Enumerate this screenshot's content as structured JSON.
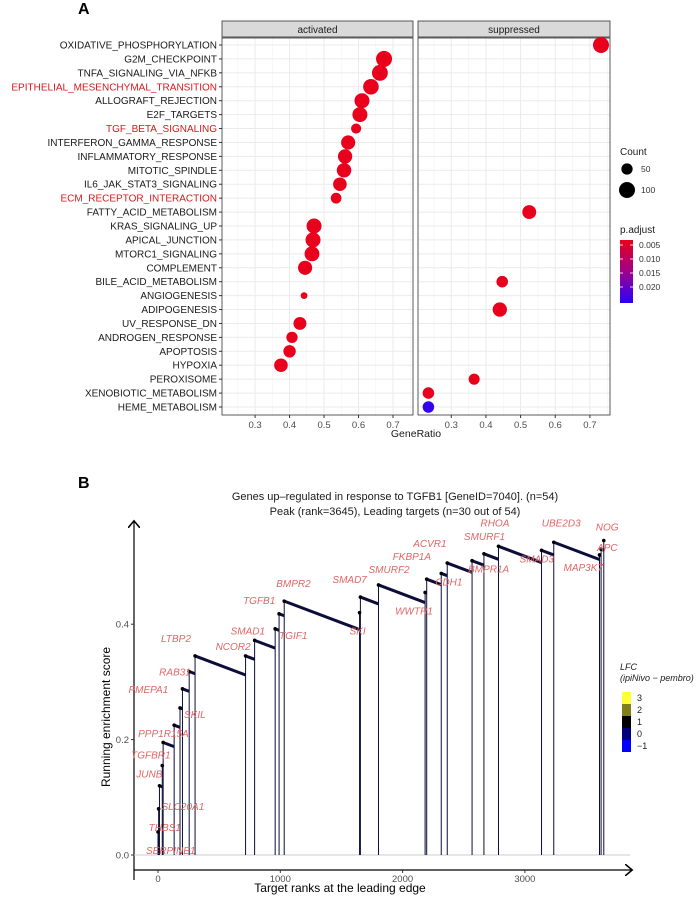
{
  "chart_data": [
    {
      "type": "scatter",
      "panel_label": "A",
      "facets": [
        "activated",
        "suppressed"
      ],
      "xlabel": "GeneRatio",
      "x_ticks": [
        "0.3",
        "0.4",
        "0.5",
        "0.6",
        "0.7"
      ],
      "xlim": [
        0.204,
        0.758
      ],
      "grid": true,
      "highlight_color": "#d7191c",
      "categories": [
        {
          "name": "OXIDATIVE_PHOSPHORYLATION",
          "highlight": false
        },
        {
          "name": "G2M_CHECKPOINT",
          "highlight": false
        },
        {
          "name": "TNFA_SIGNALING_VIA_NFKB",
          "highlight": false
        },
        {
          "name": "EPITHELIAL_MESENCHYMAL_TRANSITION",
          "highlight": true
        },
        {
          "name": "ALLOGRAFT_REJECTION",
          "highlight": false
        },
        {
          "name": "E2F_TARGETS",
          "highlight": false
        },
        {
          "name": "TGF_BETA_SIGNALING",
          "highlight": true
        },
        {
          "name": "INTERFERON_GAMMA_RESPONSE",
          "highlight": false
        },
        {
          "name": "INFLAMMATORY_RESPONSE",
          "highlight": false
        },
        {
          "name": "MITOTIC_SPINDLE",
          "highlight": false
        },
        {
          "name": "IL6_JAK_STAT3_SIGNALING",
          "highlight": false
        },
        {
          "name": "ECM_RECEPTOR_INTERACTION",
          "highlight": true
        },
        {
          "name": "FATTY_ACID_METABOLISM",
          "highlight": false
        },
        {
          "name": "KRAS_SIGNALING_UP",
          "highlight": false
        },
        {
          "name": "APICAL_JUNCTION",
          "highlight": false
        },
        {
          "name": "MTORC1_SIGNALING",
          "highlight": false
        },
        {
          "name": "COMPLEMENT",
          "highlight": false
        },
        {
          "name": "BILE_ACID_METABOLISM",
          "highlight": false
        },
        {
          "name": "ANGIOGENESIS",
          "highlight": false
        },
        {
          "name": "ADIPOGENESIS",
          "highlight": false
        },
        {
          "name": "UV_RESPONSE_DN",
          "highlight": false
        },
        {
          "name": "ANDROGEN_RESPONSE",
          "highlight": false
        },
        {
          "name": "APOPTOSIS",
          "highlight": false
        },
        {
          "name": "HYPOXIA",
          "highlight": false
        },
        {
          "name": "PEROXISOME",
          "highlight": false
        },
        {
          "name": "XENOBIOTIC_METABOLISM",
          "highlight": false
        },
        {
          "name": "HEME_METABOLISM",
          "highlight": false
        }
      ],
      "points": [
        {
          "term": "OXIDATIVE_PHOSPHORYLATION",
          "facet": "suppressed",
          "gene_ratio": 0.732,
          "count": 100,
          "p_adjust": 0.001
        },
        {
          "term": "G2M_CHECKPOINT",
          "facet": "activated",
          "gene_ratio": 0.674,
          "count": 100,
          "p_adjust": 0.001
        },
        {
          "term": "TNFA_SIGNALING_VIA_NFKB",
          "facet": "activated",
          "gene_ratio": 0.662,
          "count": 98,
          "p_adjust": 0.001
        },
        {
          "term": "EPITHELIAL_MESENCHYMAL_TRANSITION",
          "facet": "activated",
          "gene_ratio": 0.636,
          "count": 95,
          "p_adjust": 0.001
        },
        {
          "term": "ALLOGRAFT_REJECTION",
          "facet": "activated",
          "gene_ratio": 0.61,
          "count": 88,
          "p_adjust": 0.001
        },
        {
          "term": "E2F_TARGETS",
          "facet": "activated",
          "gene_ratio": 0.604,
          "count": 88,
          "p_adjust": 0.001
        },
        {
          "term": "TGF_BETA_SIGNALING",
          "facet": "activated",
          "gene_ratio": 0.593,
          "count": 40,
          "p_adjust": 0.001
        },
        {
          "term": "INTERFERON_GAMMA_RESPONSE",
          "facet": "activated",
          "gene_ratio": 0.57,
          "count": 78,
          "p_adjust": 0.001
        },
        {
          "term": "INFLAMMATORY_RESPONSE",
          "facet": "activated",
          "gene_ratio": 0.561,
          "count": 80,
          "p_adjust": 0.001
        },
        {
          "term": "MITOTIC_SPINDLE",
          "facet": "activated",
          "gene_ratio": 0.558,
          "count": 82,
          "p_adjust": 0.001
        },
        {
          "term": "IL6_JAK_STAT3_SIGNALING",
          "facet": "activated",
          "gene_ratio": 0.546,
          "count": 72,
          "p_adjust": 0.001
        },
        {
          "term": "ECM_RECEPTOR_INTERACTION",
          "facet": "activated",
          "gene_ratio": 0.535,
          "count": 45,
          "p_adjust": 0.001
        },
        {
          "term": "FATTY_ACID_METABOLISM",
          "facet": "suppressed",
          "gene_ratio": 0.525,
          "count": 75,
          "p_adjust": 0.001
        },
        {
          "term": "KRAS_SIGNALING_UP",
          "facet": "activated",
          "gene_ratio": 0.471,
          "count": 88,
          "p_adjust": 0.001
        },
        {
          "term": "APICAL_JUNCTION",
          "facet": "activated",
          "gene_ratio": 0.468,
          "count": 88,
          "p_adjust": 0.001
        },
        {
          "term": "MTORC1_SIGNALING",
          "facet": "activated",
          "gene_ratio": 0.465,
          "count": 86,
          "p_adjust": 0.001
        },
        {
          "term": "COMPLEMENT",
          "facet": "activated",
          "gene_ratio": 0.445,
          "count": 78,
          "p_adjust": 0.001
        },
        {
          "term": "BILE_ACID_METABOLISM",
          "facet": "suppressed",
          "gene_ratio": 0.447,
          "count": 52,
          "p_adjust": 0.001
        },
        {
          "term": "ANGIOGENESIS",
          "facet": "activated",
          "gene_ratio": 0.442,
          "count": 18,
          "p_adjust": 0.001
        },
        {
          "term": "ADIPOGENESIS",
          "facet": "suppressed",
          "gene_ratio": 0.44,
          "count": 80,
          "p_adjust": 0.001
        },
        {
          "term": "UV_RESPONSE_DN",
          "facet": "activated",
          "gene_ratio": 0.43,
          "count": 65,
          "p_adjust": 0.001
        },
        {
          "term": "ANDROGEN_RESPONSE",
          "facet": "activated",
          "gene_ratio": 0.407,
          "count": 50,
          "p_adjust": 0.001
        },
        {
          "term": "APOPTOSIS",
          "facet": "activated",
          "gene_ratio": 0.4,
          "count": 60,
          "p_adjust": 0.001
        },
        {
          "term": "HYPOXIA",
          "facet": "activated",
          "gene_ratio": 0.375,
          "count": 72,
          "p_adjust": 0.001
        },
        {
          "term": "PEROXISOME",
          "facet": "suppressed",
          "gene_ratio": 0.366,
          "count": 48,
          "p_adjust": 0.001
        },
        {
          "term": "XENOBIOTIC_METABOLISM",
          "facet": "suppressed",
          "gene_ratio": 0.234,
          "count": 52,
          "p_adjust": 0.002
        },
        {
          "term": "HEME_METABOLISM",
          "facet": "suppressed",
          "gene_ratio": 0.234,
          "count": 52,
          "p_adjust": 0.024
        }
      ],
      "legend_count": {
        "title": "Count",
        "entries": [
          50,
          100
        ],
        "labels": [
          "50",
          "100"
        ]
      },
      "legend_padjust": {
        "title": "p.adjust",
        "ticks": [
          "0.005",
          "0.010",
          "0.015",
          "0.020"
        ],
        "range": [
          0.0032,
          0.0254
        ],
        "low_color": "#e8001c",
        "high_color": "#2a00ff"
      },
      "legend_placement": "right"
    },
    {
      "type": "line",
      "panel_label": "B",
      "title": "Genes up–regulated in response to TGFB1 [GeneID=7040]. (n=54)",
      "subtitle": "Peak (rank=3645), Leading targets (n=30 out of 54)",
      "xlabel": "Target ranks at the leading edge",
      "ylabel": "Running enrichment score",
      "x_ticks": [
        "0",
        "1000",
        "2000",
        "3000"
      ],
      "y_ticks": [
        "0.0",
        "0.2",
        "0.4"
      ],
      "xlim": [
        -150,
        3850
      ],
      "ylim": [
        -0.025,
        0.58
      ],
      "grid": false,
      "line_color": "#0d0d3a",
      "label_color": "#e06666",
      "decay_per_rank": 8e-05,
      "genes": [
        {
          "gene": "SERPINE1",
          "rank": 0,
          "es": 0.04
        },
        {
          "gene": "THBS1",
          "rank": 5,
          "es": 0.08
        },
        {
          "gene": "SLC20A1",
          "rank": 12,
          "es": 0.12
        },
        {
          "gene": "JUNB",
          "rank": 35,
          "es": 0.155
        },
        {
          "gene": "TGFBR1",
          "rank": 42,
          "es": 0.195
        },
        {
          "gene": "PPP1R15A",
          "rank": 132,
          "es": 0.225
        },
        {
          "gene": "SKIL",
          "rank": 180,
          "es": 0.255
        },
        {
          "gene": "PMEPA1",
          "rank": 200,
          "es": 0.288
        },
        {
          "gene": "RAB31",
          "rank": 255,
          "es": 0.318
        },
        {
          "gene": "LTBP2",
          "rank": 303,
          "es": 0.345
        },
        {
          "gene": "NCOR2",
          "rank": 716,
          "es": 0.345
        },
        {
          "gene": "SMAD1",
          "rank": 790,
          "es": 0.372
        },
        {
          "gene": "TGIF1",
          "rank": 958,
          "es": 0.392
        },
        {
          "gene": "TGFB1",
          "rank": 990,
          "es": 0.418
        },
        {
          "gene": "BMPR2",
          "rank": 1032,
          "es": 0.44
        },
        {
          "gene": "SKI",
          "rank": 1648,
          "es": 0.42
        },
        {
          "gene": "SMAD7",
          "rank": 1655,
          "es": 0.447
        },
        {
          "gene": "SMURF2",
          "rank": 1803,
          "es": 0.468
        },
        {
          "gene": "WWTR1",
          "rank": 2184,
          "es": 0.455
        },
        {
          "gene": "FKBP1A",
          "rank": 2197,
          "es": 0.478
        },
        {
          "gene": "CDH1",
          "rank": 2316,
          "es": 0.488
        },
        {
          "gene": "ACVR1",
          "rank": 2365,
          "es": 0.506
        },
        {
          "gene": "BMPR1A",
          "rank": 2568,
          "es": 0.51
        },
        {
          "gene": "SMURF1",
          "rank": 2665,
          "es": 0.522
        },
        {
          "gene": "RHOA",
          "rank": 2784,
          "es": 0.535
        },
        {
          "gene": "SMAD3",
          "rank": 3136,
          "es": 0.528
        },
        {
          "gene": "UBE2D3",
          "rank": 3236,
          "es": 0.542
        },
        {
          "gene": "MAP3K7",
          "rank": 3610,
          "es": 0.52
        },
        {
          "gene": "APC",
          "rank": 3623,
          "es": 0.53
        },
        {
          "gene": "NOG",
          "rank": 3645,
          "es": 0.545
        }
      ],
      "legend_lfc": {
        "title": "LFC",
        "subtitle": "(ipiNivo − pembro)",
        "labels": [
          "3",
          "2",
          "1",
          "0",
          "−1"
        ],
        "colors": [
          "#ffff33",
          "#80801a",
          "#000000",
          "#00007a",
          "#0000ff"
        ],
        "placement": "right"
      }
    }
  ]
}
